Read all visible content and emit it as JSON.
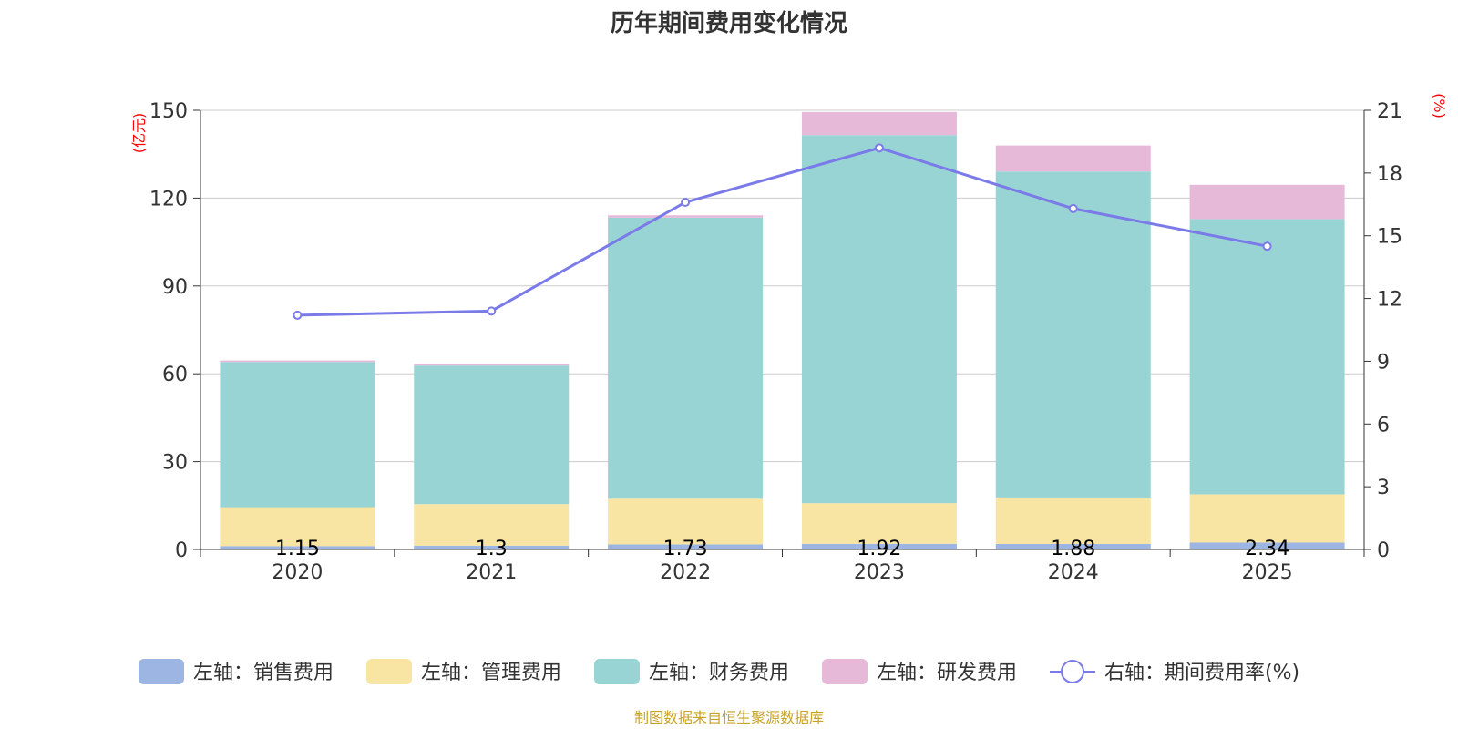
{
  "chart_data": {
    "type": "bar",
    "title": "历年期间费用变化情况",
    "categories": [
      "2020",
      "2021",
      "2022",
      "2023",
      "2024",
      "2025"
    ],
    "left_axis": {
      "unit": "(亿元)",
      "ticks": [
        "0",
        "30",
        "60",
        "90",
        "120",
        "150"
      ],
      "ylim": [
        0,
        150
      ]
    },
    "right_axis": {
      "unit": "(%)",
      "ticks": [
        "0",
        "3",
        "6",
        "9",
        "12",
        "15",
        "18",
        "21"
      ],
      "ylim": [
        0,
        21
      ]
    },
    "series": [
      {
        "name": "左轴：销售费用",
        "color": "#9db5e2",
        "values": [
          1.15,
          1.3,
          1.73,
          1.92,
          1.88,
          2.34
        ],
        "labels": [
          "1.15",
          "1.3",
          "1.73",
          "1.92",
          "1.88",
          "2.34"
        ]
      },
      {
        "name": "左轴：管理费用",
        "color": "#f8e5a4",
        "values": [
          13.3,
          14.2,
          15.6,
          13.9,
          15.9,
          16.5
        ]
      },
      {
        "name": "左轴：财务费用",
        "color": "#98d4d4",
        "values": [
          49.6,
          47.3,
          96.0,
          125.7,
          111.3,
          94.0
        ]
      },
      {
        "name": "左轴：研发费用",
        "color": "#e7b9d9",
        "values": [
          0.5,
          0.5,
          0.8,
          7.9,
          8.9,
          11.7
        ]
      }
    ],
    "line": {
      "name": "右轴：期间费用率(%)",
      "color": "#7a7ae8",
      "values": [
        11.2,
        11.4,
        16.6,
        19.2,
        16.3,
        14.5
      ]
    },
    "grid": true,
    "legend_position": "bottom"
  },
  "source": "制图数据来自恒生聚源数据库"
}
